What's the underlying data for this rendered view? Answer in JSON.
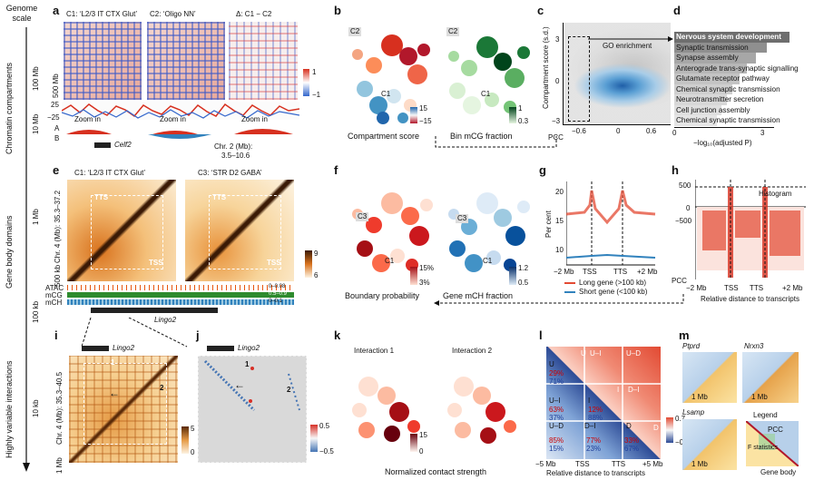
{
  "left_axis": {
    "genome_scale": "Genome scale",
    "chromatin_compartments": "Chromatin compartments",
    "gene_body_domains": "Gene body domains",
    "highly_variable_interactions": "Highly variable interactions",
    "scale_100mb": "100 Mb",
    "scale_10mb": "10 Mb",
    "scale_1mb": "1 Mb",
    "scale_100kb": "100 kb",
    "scale_10kb": "10 kb"
  },
  "panel_labels": {
    "a": "a",
    "b": "b",
    "c": "c",
    "d": "d",
    "e": "e",
    "f": "f",
    "g": "g",
    "h": "h",
    "i": "i",
    "j": "j",
    "k": "k",
    "l": "l",
    "m": "m"
  },
  "panel_a": {
    "title1": "C1: ‘L2/3 IT CTX Glut’",
    "title2": "C2: ‘Oligo NN’",
    "title3": "Δ: C1 − C2",
    "y_500mb": "500 Mb",
    "scale_top": "1",
    "scale_bottom": "−1",
    "tick_25": "25",
    "tick_n25": "−25",
    "row_a": "A",
    "row_b": "B",
    "zoom_in": "Zoom in",
    "gene": "Celf2",
    "chr_label": "Chr. 2 (Mb):",
    "chr_range": "3.5–10.6"
  },
  "panel_b": {
    "c1": "C1",
    "c2": "C2",
    "scale1_top": "15",
    "scale1_bottom": "−15",
    "scale2_top": "1",
    "scale2_bottom": "0.3",
    "caption1": "Compartment score",
    "caption2": "Bin mCG fraction"
  },
  "panel_c": {
    "ylabel": "Compartment score (s.d.)",
    "ytick_top": "3",
    "ytick_mid": "0",
    "ytick_bottom": "−3",
    "xticks": [
      "−0.6",
      "0",
      "0.6"
    ],
    "xlabel": "PCC",
    "annotation": "GO enrichment"
  },
  "panel_d": {
    "items": [
      "Nervous system development",
      "Synaptic transmission",
      "Synapse assembly",
      "Anterograde trans-synaptic signalling",
      "Glutamate receptor pathway",
      "Chemical synaptic transmission",
      "Neurotransmitter secretion",
      "Cell junction assembly",
      "Chemical synaptic transmission"
    ],
    "xticks": [
      "0",
      "3"
    ],
    "xlabel": "−log₁₀(adjusted P)"
  },
  "panel_e": {
    "title1": "C1: ‘L2/3 IT CTX Glut’",
    "title2": "C3: ‘STR D2 GABA’",
    "ylabel": "Chr. 4 (Mb): 35.3–37.2",
    "y500": "500 kb",
    "tts": "TTS",
    "tss": "TSS",
    "scale_top": "9",
    "scale_bottom": "6",
    "atac": "ATAC",
    "mcg": "mCG",
    "mch": "mCH",
    "atac_range": "0–0.08",
    "mcg_range": "0.5–0.9",
    "mch_range": "0–0.1",
    "gene": "Lingo2"
  },
  "panel_f": {
    "c1": "C1",
    "c3": "C3",
    "scale1_top": "15%",
    "scale1_bottom": "3%",
    "scale2_top": "1.2",
    "scale2_bottom": "0.5",
    "caption1": "Boundary probability",
    "caption2": "Gene mCH fraction"
  },
  "panel_g": {
    "ylabel": "Per cent",
    "yticks": [
      "20",
      "15",
      "10"
    ],
    "xticks": [
      "−2 Mb",
      "TSS",
      "TTS",
      "+2 Mb"
    ],
    "legend_long": "Long gene (>100 kb)",
    "legend_short": "Short gene (<100 kb)",
    "color_long": "#e34a33",
    "color_short": "#3182bd"
  },
  "panel_h": {
    "yticks": [
      "500",
      "0",
      "−500"
    ],
    "xticks": [
      "−2 Mb",
      "TSS",
      "TTS",
      "+2 Mb"
    ],
    "ylabel": "PCC",
    "xlabel": "Relative distance to transcripts",
    "histogram": "Histogram"
  },
  "panel_i": {
    "gene": "Lingo2",
    "ylabel": "Chr. 4 (Mb): 35.3–40.5",
    "y1mb": "1 Mb",
    "marker1": "1",
    "marker2": "2",
    "scale_top": "5",
    "scale_bottom": "0"
  },
  "panel_j": {
    "gene": "Lingo2",
    "marker1": "1",
    "marker2": "2",
    "scale_top": "0.5",
    "scale_bottom": "−0.5"
  },
  "panel_k": {
    "title1": "Interaction 1",
    "title2": "Interaction 2",
    "scale_top": "15",
    "scale_bottom": "0",
    "caption": "Normalized contact strength"
  },
  "panel_l": {
    "labels": [
      "U",
      "U–I",
      "U–D",
      "I",
      "D–I",
      "D",
      "U",
      "U–I",
      "I",
      "U–D",
      "D–I",
      "D"
    ],
    "pct_red": [
      "29%",
      "63%",
      "12%",
      "85%",
      "77%",
      "33%"
    ],
    "pct_blue": [
      "71%",
      "37%",
      "88%",
      "15%",
      "23%",
      "67%"
    ],
    "scale_top": "0.7",
    "scale_bottom": "−0.7",
    "xticks": [
      "−5 Mb",
      "TSS",
      "TTS",
      "+5 Mb"
    ],
    "xlabel": "Relative distance to transcripts"
  },
  "panel_m": {
    "gene1": "Ptprd",
    "gene2": "Nrxn3",
    "gene3": "Lsamp",
    "scale": "1 Mb",
    "legend_title": "Legend",
    "legend_pcc": "PCC",
    "legend_f": "F statistics",
    "legend_body": "Gene body"
  }
}
